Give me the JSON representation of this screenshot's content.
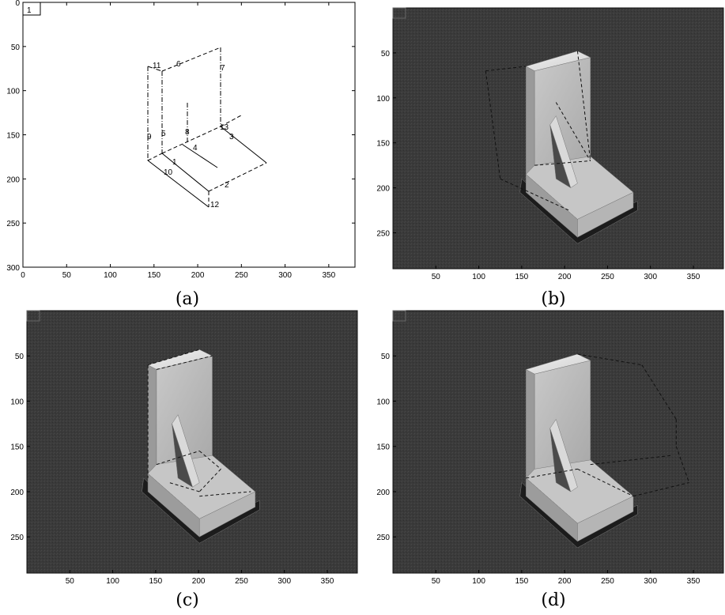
{
  "captions": {
    "a": "(a)",
    "b": "(b)",
    "c": "(c)",
    "d": "(d)"
  },
  "panel_a": {
    "figure_number": "1",
    "x_ticks": [
      "0",
      "50",
      "100",
      "150",
      "200",
      "250",
      "300",
      "350"
    ],
    "y_ticks": [
      "0",
      "50",
      "100",
      "150",
      "200",
      "250",
      "300"
    ],
    "edge_labels": [
      "1",
      "2",
      "3",
      "4",
      "5",
      "6",
      "7",
      "8",
      "9",
      "10",
      "11",
      "12",
      "13"
    ]
  },
  "image_panels": {
    "x_ticks": [
      "50",
      "100",
      "150",
      "200",
      "250",
      "300",
      "350"
    ],
    "y_ticks": [
      "50",
      "100",
      "150",
      "200",
      "250"
    ]
  },
  "colors": {
    "photo_background": "#3b3b3b",
    "object_light": "#d8d8d8",
    "object_mid": "#b4b4b4",
    "object_dark": "#8a8a8a"
  }
}
